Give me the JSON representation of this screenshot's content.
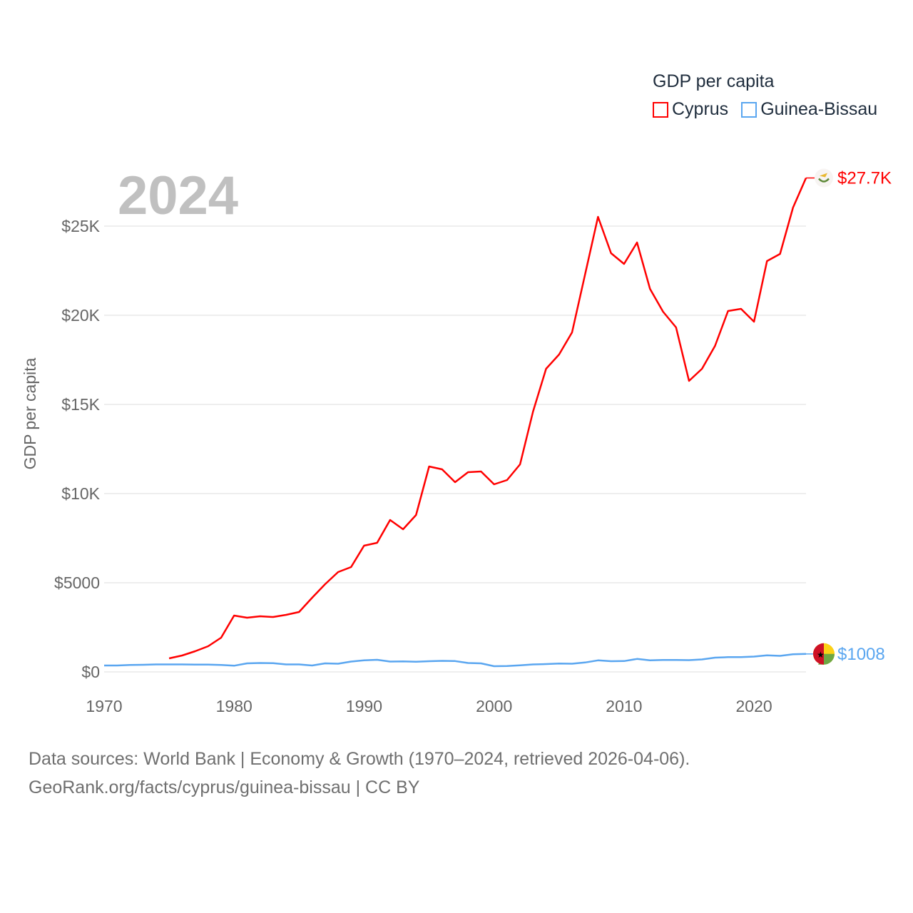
{
  "chart_data": {
    "type": "line",
    "title": "GDP per capita",
    "year_label": "2024",
    "ylabel": "GDP per capita",
    "xlabel": "",
    "xlim": [
      1970,
      2024
    ],
    "ylim": [
      0,
      28000
    ],
    "x_ticks": [
      1970,
      1980,
      1990,
      2000,
      2010,
      2020
    ],
    "y_ticks": [
      0,
      5000,
      10000,
      15000,
      20000,
      25000
    ],
    "y_tick_labels": [
      "$0",
      "$5000",
      "$10K",
      "$15K",
      "$20K",
      "$25K"
    ],
    "grid": true,
    "legend_position": "top-right",
    "series": [
      {
        "name": "Cyprus",
        "color": "#ff0000",
        "end_label": "$27.7K",
        "flag": "cyprus-flag",
        "x": [
          1975,
          1976,
          1977,
          1978,
          1979,
          1980,
          1981,
          1982,
          1983,
          1984,
          1985,
          1986,
          1987,
          1988,
          1989,
          1990,
          1991,
          1992,
          1993,
          1994,
          1995,
          1996,
          1997,
          1998,
          1999,
          2000,
          2001,
          2002,
          2003,
          2004,
          2005,
          2006,
          2007,
          2008,
          2009,
          2010,
          2011,
          2012,
          2013,
          2014,
          2015,
          2016,
          2017,
          2018,
          2019,
          2020,
          2021,
          2022,
          2023,
          2024
        ],
        "values": [
          760,
          920,
          1160,
          1440,
          1920,
          3160,
          3040,
          3120,
          3080,
          3200,
          3360,
          4160,
          4920,
          5600,
          5880,
          7080,
          7240,
          8520,
          8000,
          8800,
          11520,
          11360,
          10640,
          11200,
          11240,
          10520,
          10760,
          11640,
          14600,
          17000,
          17800,
          19040,
          22280,
          25520,
          23480,
          22880,
          24080,
          21480,
          20200,
          19320,
          16320,
          17000,
          18280,
          20240,
          20360,
          19640,
          23040,
          23440,
          26040,
          27700
        ]
      },
      {
        "name": "Guinea-Bissau",
        "color": "#5aa6f0",
        "end_label": "$1008",
        "flag": "guinea-bissau-flag",
        "x": [
          1970,
          1971,
          1972,
          1973,
          1974,
          1975,
          1976,
          1977,
          1978,
          1979,
          1980,
          1981,
          1982,
          1983,
          1984,
          1985,
          1986,
          1987,
          1988,
          1989,
          1990,
          1991,
          1992,
          1993,
          1994,
          1995,
          1996,
          1997,
          1998,
          1999,
          2000,
          2001,
          2002,
          2003,
          2004,
          2005,
          2006,
          2007,
          2008,
          2009,
          2010,
          2011,
          2012,
          2013,
          2014,
          2015,
          2016,
          2017,
          2018,
          2019,
          2020,
          2021,
          2022,
          2023,
          2024
        ],
        "values": [
          360,
          360,
          390,
          400,
          420,
          420,
          420,
          410,
          410,
          390,
          350,
          480,
          500,
          490,
          420,
          420,
          360,
          480,
          460,
          580,
          650,
          680,
          580,
          590,
          570,
          600,
          620,
          610,
          500,
          480,
          320,
          330,
          370,
          420,
          440,
          470,
          460,
          530,
          650,
          600,
          610,
          730,
          650,
          670,
          670,
          660,
          700,
          800,
          830,
          830,
          860,
          930,
          900,
          990,
          1008
        ]
      }
    ]
  },
  "footer": {
    "line1": "Data sources: World Bank | Economy & Growth (1970–2024, retrieved 2026-04-06).",
    "line2": "GeoRank.org/facts/cyprus/guinea-bissau | CC BY"
  }
}
